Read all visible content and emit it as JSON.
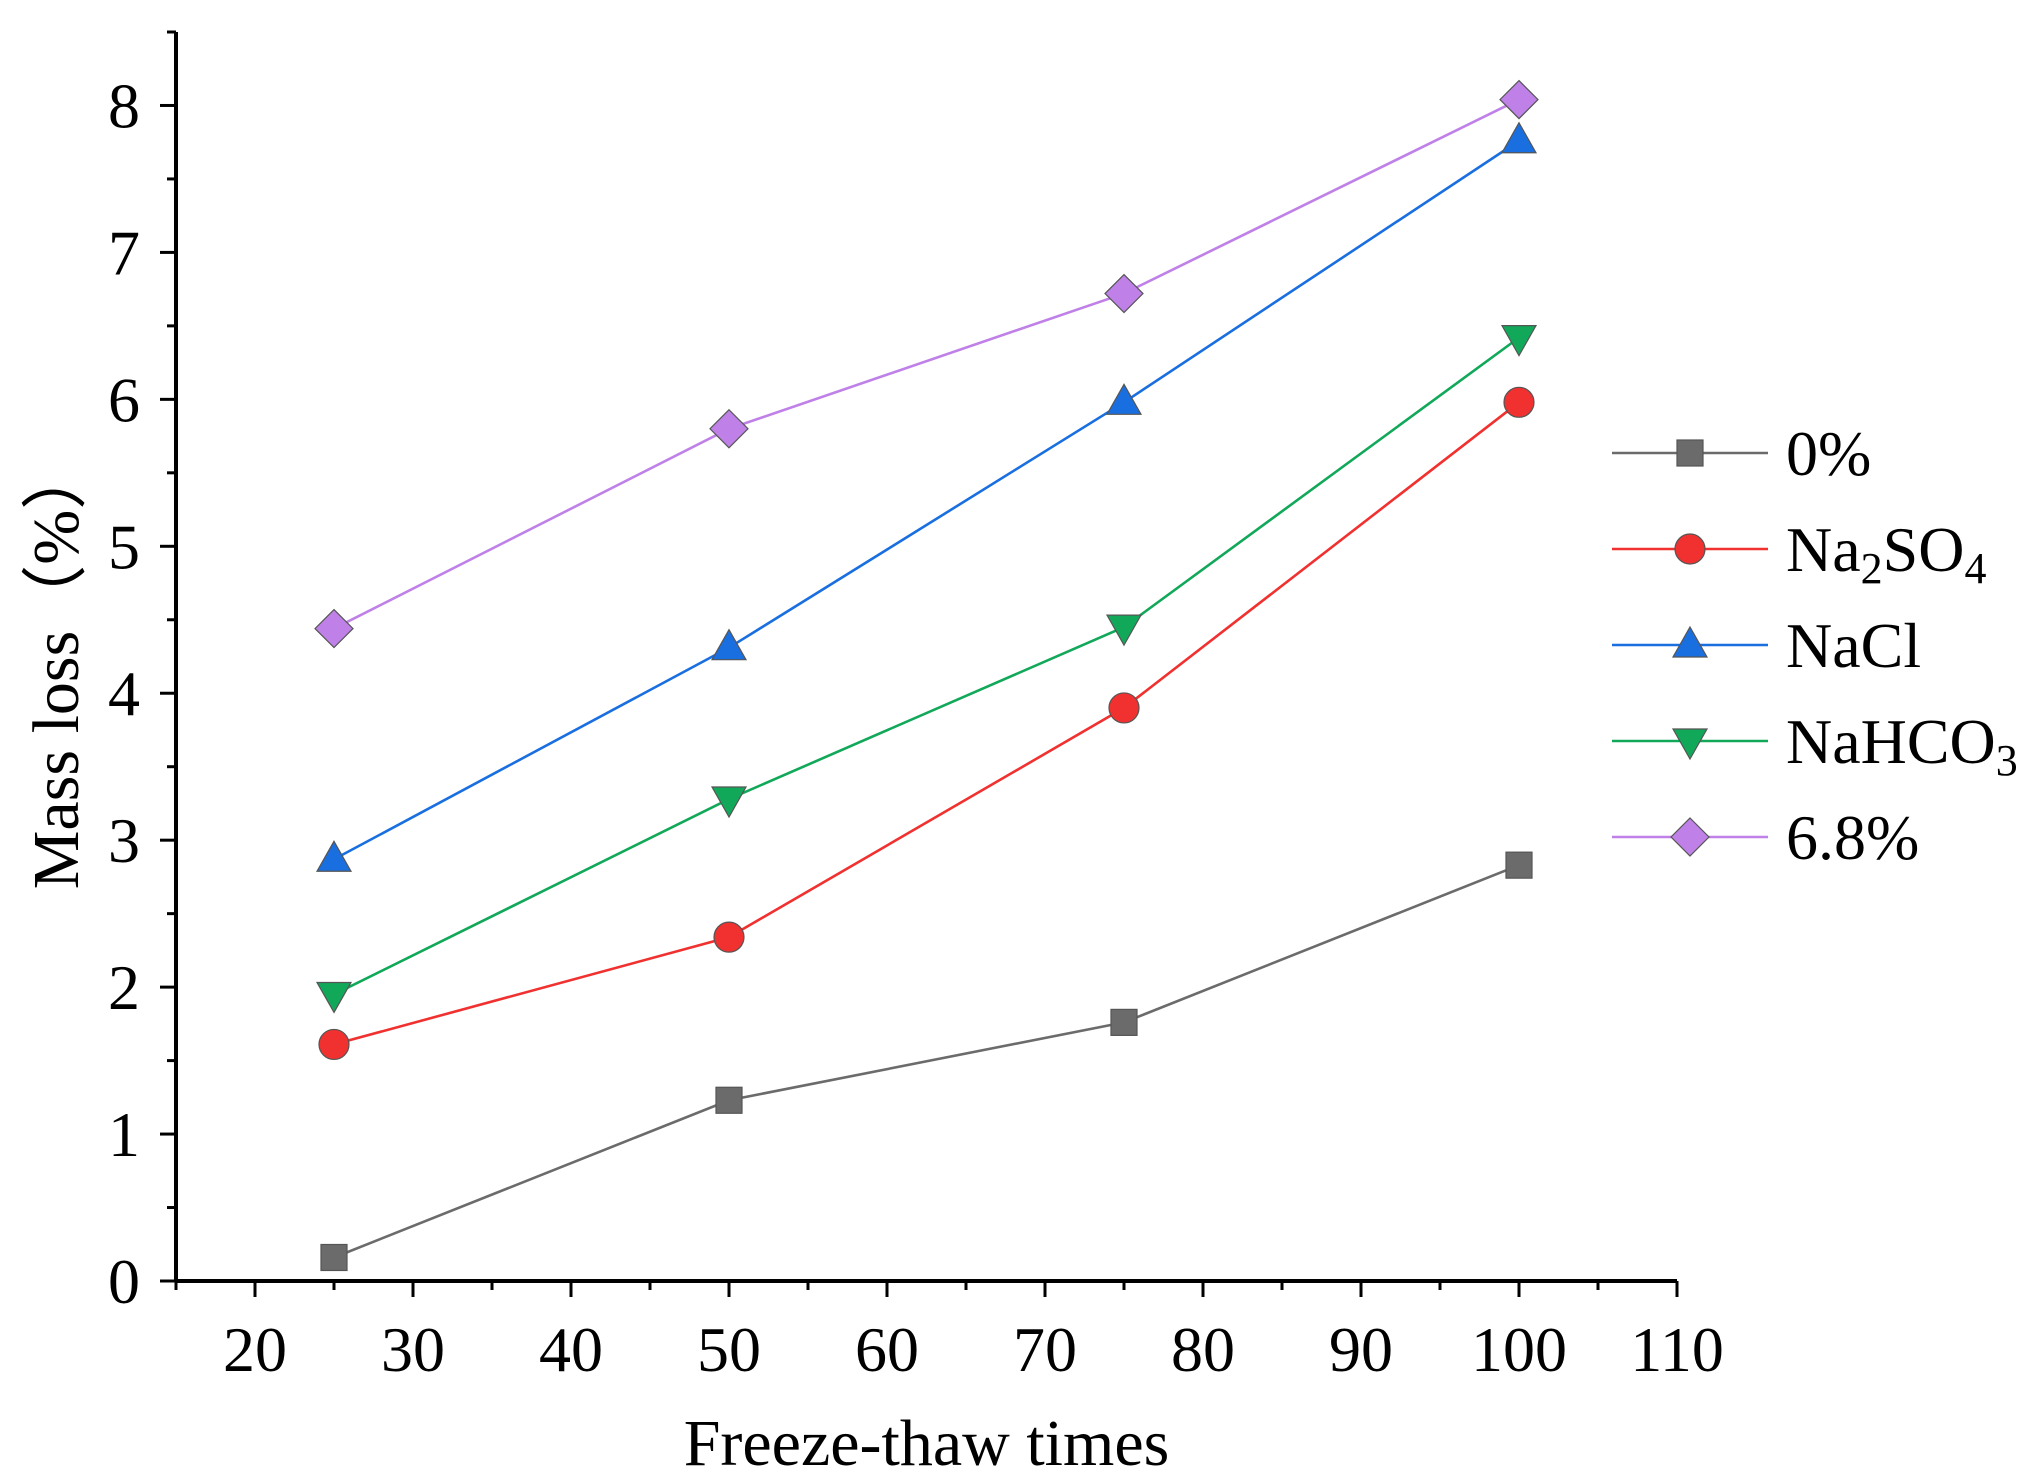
{
  "chart_data": {
    "type": "line",
    "title": "",
    "xlabel": "Freeze-thaw times",
    "ylabel": "Mass loss（%）",
    "xlim": [
      15,
      110
    ],
    "ylim": [
      0,
      8.5
    ],
    "xticks": [
      20,
      30,
      40,
      50,
      60,
      70,
      80,
      90,
      100,
      110
    ],
    "yticks": [
      0,
      1,
      2,
      3,
      4,
      5,
      6,
      7,
      8
    ],
    "grid": false,
    "legend_position": "right",
    "x": [
      25,
      50,
      75,
      100
    ],
    "series": [
      {
        "name": "0%",
        "label_parts": [
          {
            "t": "0%",
            "sub": false
          }
        ],
        "color": "#6b6b6b",
        "marker": "square",
        "values": [
          0.16,
          1.23,
          1.76,
          2.83
        ]
      },
      {
        "name": "Na2SO4",
        "label_parts": [
          {
            "t": "Na",
            "sub": false
          },
          {
            "t": "2",
            "sub": true
          },
          {
            "t": "SO",
            "sub": false
          },
          {
            "t": "4",
            "sub": true
          }
        ],
        "color": "#f0312f",
        "marker": "circle",
        "values": [
          1.61,
          2.34,
          3.9,
          5.98
        ]
      },
      {
        "name": "NaCl",
        "label_parts": [
          {
            "t": "NaCl",
            "sub": false
          }
        ],
        "color": "#1a6fe0",
        "marker": "triangle-up",
        "values": [
          2.87,
          4.31,
          5.98,
          7.76
        ]
      },
      {
        "name": "NaHCO3",
        "label_parts": [
          {
            "t": "NaHCO",
            "sub": false
          },
          {
            "t": "3",
            "sub": true
          }
        ],
        "color": "#12a85a",
        "marker": "triangle-down",
        "values": [
          1.95,
          3.28,
          4.45,
          6.42
        ]
      },
      {
        "name": "6.8%",
        "label_parts": [
          {
            "t": "6.8%",
            "sub": false
          }
        ],
        "color": "#bf80e8",
        "marker": "diamond",
        "values": [
          4.44,
          5.8,
          6.72,
          8.04
        ]
      }
    ]
  }
}
